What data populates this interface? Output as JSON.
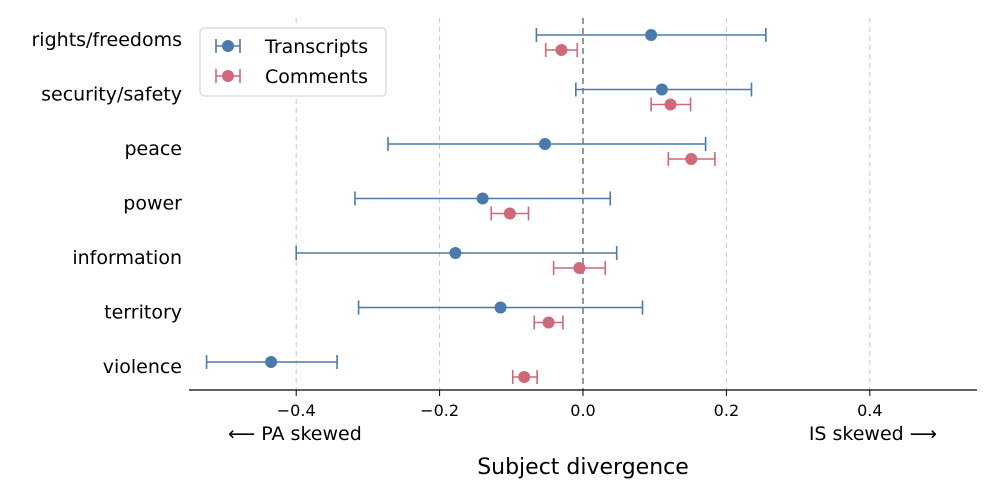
{
  "chart_data": {
    "type": "errorbar",
    "title": "",
    "xlabel": "Subject divergence",
    "ylabel": "",
    "xlim": [
      -0.545,
      0.545
    ],
    "xticks": [
      -0.4,
      -0.2,
      0.0,
      0.2,
      0.4
    ],
    "xtick_labels": [
      "−0.4",
      "−0.2",
      "0.0",
      "0.2",
      "0.4"
    ],
    "grid": "vertical dashed at ticks",
    "zero_line": true,
    "left_annotation": "⟵  PA skewed",
    "right_annotation": "IS skewed  ⟶",
    "categories": [
      "rights/freedoms",
      "security/safety",
      "peace",
      "power",
      "information",
      "territory",
      "violence"
    ],
    "legend_position": "top-left",
    "series": [
      {
        "name": "Transcripts",
        "color": "#4a7aab",
        "values": [
          0.095,
          0.11,
          -0.053,
          -0.14,
          -0.178,
          -0.115,
          -0.435
        ],
        "lower": [
          -0.065,
          -0.01,
          -0.272,
          -0.318,
          -0.4,
          -0.313,
          -0.525
        ],
        "upper": [
          0.255,
          0.235,
          0.171,
          0.038,
          0.047,
          0.083,
          -0.343
        ]
      },
      {
        "name": "Comments",
        "color": "#cf6878",
        "values": [
          -0.03,
          0.122,
          0.151,
          -0.102,
          -0.005,
          -0.048,
          -0.082
        ],
        "lower": [
          -0.052,
          0.095,
          0.119,
          -0.128,
          -0.041,
          -0.068,
          -0.098
        ],
        "upper": [
          -0.008,
          0.15,
          0.184,
          -0.076,
          0.031,
          -0.028,
          -0.064
        ]
      }
    ]
  }
}
